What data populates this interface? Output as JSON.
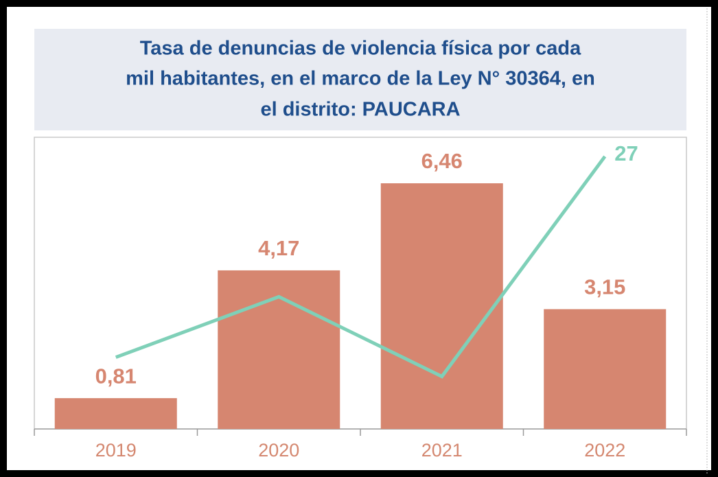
{
  "chart_data": {
    "type": "bar_line",
    "title": [
      "Tasa de denuncias de violencia física por cada",
      "mil habitantes, en el marco de la Ley N° 30364, en",
      "el distrito: PAUCARA"
    ],
    "categories": [
      "2019",
      "2020",
      "2021",
      "2022"
    ],
    "ylim": [
      0,
      7.67
    ],
    "y2lim": [
      0,
      28.9
    ],
    "series": [
      {
        "type": "bar",
        "color": "#d68670",
        "values": [
          0.81,
          4.17,
          6.46,
          3.15
        ],
        "value_labels": [
          "0,81",
          "4,17",
          "6,46",
          "3,15"
        ]
      },
      {
        "type": "line",
        "axis": "y2",
        "color": "#7fd0b8",
        "values": [
          7.1,
          13.1,
          5.2,
          27
        ],
        "value_labels": [
          null,
          null,
          null,
          "27"
        ]
      }
    ]
  }
}
